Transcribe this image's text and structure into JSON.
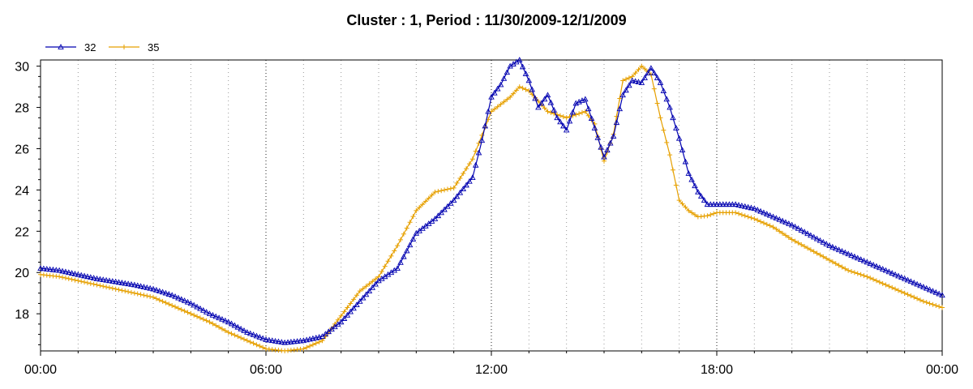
{
  "chart_data": {
    "type": "line",
    "title": "Cluster : 1, Period : 11/30/2009-12/1/2009",
    "xlabel": "",
    "ylabel": "",
    "x_unit": "hours since 00:00",
    "xlim": [
      0,
      24
    ],
    "ylim": [
      16.2,
      30.3
    ],
    "x_ticks": [
      {
        "value": 0,
        "label": "00:00"
      },
      {
        "value": 6,
        "label": "06:00"
      },
      {
        "value": 12,
        "label": "12:00"
      },
      {
        "value": 18,
        "label": "18:00"
      },
      {
        "value": 24,
        "label": "00:00"
      }
    ],
    "y_ticks": [
      {
        "value": 18,
        "label": "18"
      },
      {
        "value": 20,
        "label": "20"
      },
      {
        "value": 22,
        "label": "22"
      },
      {
        "value": 24,
        "label": "24"
      },
      {
        "value": 26,
        "label": "26"
      },
      {
        "value": 28,
        "label": "28"
      },
      {
        "value": 30,
        "label": "30"
      }
    ],
    "grid": "vertical dotted lines every hour",
    "legend_position": "top-left",
    "series": [
      {
        "name": "32",
        "color": "#0000b0",
        "marker": "triangle",
        "points": [
          [
            0,
            20.2
          ],
          [
            0.5,
            20.1
          ],
          [
            1,
            19.9
          ],
          [
            1.5,
            19.7
          ],
          [
            2,
            19.55
          ],
          [
            2.5,
            19.4
          ],
          [
            3,
            19.2
          ],
          [
            3.5,
            18.9
          ],
          [
            4,
            18.5
          ],
          [
            4.5,
            18.0
          ],
          [
            5,
            17.6
          ],
          [
            5.5,
            17.1
          ],
          [
            6,
            16.75
          ],
          [
            6.5,
            16.6
          ],
          [
            7,
            16.7
          ],
          [
            7.5,
            16.9
          ],
          [
            8,
            17.6
          ],
          [
            8.5,
            18.6
          ],
          [
            9,
            19.6
          ],
          [
            9.5,
            20.2
          ],
          [
            10,
            21.9
          ],
          [
            10.5,
            22.6
          ],
          [
            11,
            23.5
          ],
          [
            11.5,
            24.6
          ],
          [
            11.75,
            26.4
          ],
          [
            12,
            28.5
          ],
          [
            12.25,
            29.1
          ],
          [
            12.5,
            30.0
          ],
          [
            12.75,
            30.3
          ],
          [
            13,
            29.3
          ],
          [
            13.25,
            28.0
          ],
          [
            13.5,
            28.6
          ],
          [
            13.75,
            27.5
          ],
          [
            14,
            26.9
          ],
          [
            14.25,
            28.2
          ],
          [
            14.5,
            28.4
          ],
          [
            14.75,
            27.0
          ],
          [
            15,
            25.6
          ],
          [
            15.25,
            26.6
          ],
          [
            15.5,
            28.6
          ],
          [
            15.75,
            29.3
          ],
          [
            16,
            29.2
          ],
          [
            16.25,
            29.9
          ],
          [
            16.5,
            29.2
          ],
          [
            16.75,
            28.0
          ],
          [
            17,
            26.5
          ],
          [
            17.25,
            24.8
          ],
          [
            17.5,
            23.9
          ],
          [
            17.75,
            23.3
          ],
          [
            18,
            23.3
          ],
          [
            18.5,
            23.3
          ],
          [
            19,
            23.1
          ],
          [
            19.5,
            22.7
          ],
          [
            20,
            22.3
          ],
          [
            20.5,
            21.8
          ],
          [
            21,
            21.3
          ],
          [
            21.5,
            20.9
          ],
          [
            22,
            20.5
          ],
          [
            22.5,
            20.1
          ],
          [
            23,
            19.7
          ],
          [
            23.5,
            19.3
          ],
          [
            24,
            18.9
          ]
        ]
      },
      {
        "name": "35",
        "color": "#e6a000",
        "marker": "plus",
        "points": [
          [
            0,
            19.9
          ],
          [
            0.5,
            19.8
          ],
          [
            1,
            19.6
          ],
          [
            1.5,
            19.4
          ],
          [
            2,
            19.2
          ],
          [
            2.5,
            19.0
          ],
          [
            3,
            18.8
          ],
          [
            3.5,
            18.4
          ],
          [
            4,
            18.0
          ],
          [
            4.5,
            17.6
          ],
          [
            5,
            17.1
          ],
          [
            5.5,
            16.7
          ],
          [
            6,
            16.3
          ],
          [
            6.5,
            16.2
          ],
          [
            7,
            16.3
          ],
          [
            7.5,
            16.7
          ],
          [
            8,
            17.9
          ],
          [
            8.5,
            19.1
          ],
          [
            9,
            19.8
          ],
          [
            9.5,
            21.3
          ],
          [
            10,
            23.0
          ],
          [
            10.5,
            23.9
          ],
          [
            11,
            24.1
          ],
          [
            11.5,
            25.5
          ],
          [
            12,
            27.8
          ],
          [
            12.5,
            28.5
          ],
          [
            12.75,
            29.0
          ],
          [
            13,
            28.8
          ],
          [
            13.5,
            27.8
          ],
          [
            14,
            27.5
          ],
          [
            14.5,
            27.8
          ],
          [
            14.75,
            27.2
          ],
          [
            15,
            25.4
          ],
          [
            15.25,
            26.7
          ],
          [
            15.5,
            29.3
          ],
          [
            15.75,
            29.5
          ],
          [
            16,
            30.0
          ],
          [
            16.25,
            29.6
          ],
          [
            16.5,
            27.5
          ],
          [
            16.75,
            25.7
          ],
          [
            17,
            23.5
          ],
          [
            17.25,
            23.0
          ],
          [
            17.5,
            22.7
          ],
          [
            17.75,
            22.75
          ],
          [
            18,
            22.9
          ],
          [
            18.5,
            22.9
          ],
          [
            19,
            22.6
          ],
          [
            19.5,
            22.2
          ],
          [
            20,
            21.6
          ],
          [
            20.5,
            21.1
          ],
          [
            21,
            20.6
          ],
          [
            21.5,
            20.1
          ],
          [
            22,
            19.8
          ],
          [
            22.5,
            19.4
          ],
          [
            23,
            19.0
          ],
          [
            23.5,
            18.6
          ],
          [
            24,
            18.3
          ]
        ]
      }
    ]
  }
}
